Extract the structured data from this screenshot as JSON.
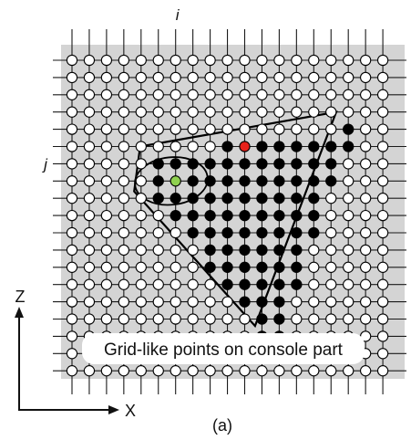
{
  "labels": {
    "i": "i",
    "j": "j",
    "z_axis": "Z",
    "x_axis": "X",
    "caption": "Grid-like points on console part",
    "subfigure": "(a)"
  },
  "colors": {
    "panel": "#d4d4d4",
    "grid_line": "#1a1a1a",
    "point_outside": "#ffffff",
    "point_inside": "#000000",
    "point_red": "#e8221b",
    "point_green": "#8fd14f",
    "caption_box": "#ffffff"
  },
  "grid": {
    "columns": 19,
    "rows": 19,
    "marked_column_label": "i",
    "marked_row_label": "j"
  },
  "inside_rows": [
    [],
    [],
    [],
    [],
    [
      16
    ],
    [
      9,
      10,
      11,
      12,
      13,
      14,
      15,
      16
    ],
    [
      5,
      6,
      7,
      8,
      9,
      10,
      11,
      12,
      13,
      14,
      15
    ],
    [
      5,
      6,
      7,
      8,
      9,
      10,
      11,
      12,
      13,
      14,
      15
    ],
    [
      5,
      6,
      7,
      8,
      9,
      10,
      11,
      12,
      13,
      14
    ],
    [
      6,
      7,
      8,
      9,
      10,
      11,
      12,
      13,
      14
    ],
    [
      7,
      8,
      9,
      10,
      11,
      12,
      13,
      14
    ],
    [
      8,
      9,
      10,
      11,
      12,
      13
    ],
    [
      8,
      9,
      10,
      11,
      12,
      13
    ],
    [
      9,
      10,
      11,
      12,
      13
    ],
    [
      10,
      11,
      12
    ],
    [
      11,
      12
    ],
    [
      11,
      12
    ],
    [],
    []
  ],
  "special_points": {
    "red": {
      "row": 5,
      "column": 10
    },
    "green": {
      "row": 7,
      "column": 6
    }
  }
}
